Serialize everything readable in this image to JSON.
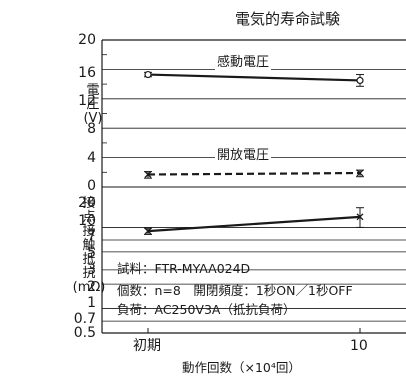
{
  "chart_data": {
    "type": "line",
    "title": "電気的寿命試験",
    "xlabel": "動作回数（×10⁴回）",
    "x_tick_labels": [
      "初期",
      "10"
    ],
    "panels": [
      {
        "ylabel_lines": [
          "電",
          "圧",
          "(V)"
        ],
        "y_tick_labels": [
          "20",
          "16",
          "12",
          "8",
          "4",
          "0"
        ],
        "ylim": [
          0,
          20
        ],
        "series": [
          {
            "name": "感動電圧",
            "line_style": "solid",
            "marker": "circle",
            "values": [
              15.3,
              14.5
            ],
            "error_low": [
              15.0,
              13.7
            ],
            "error_high": [
              15.6,
              15.3
            ]
          },
          {
            "name": "開放電圧",
            "line_style": "dashed",
            "marker": "x",
            "values": [
              1.7,
              1.9
            ],
            "error_low": [
              1.2,
              1.4
            ],
            "error_high": [
              2.1,
              2.3
            ]
          }
        ]
      },
      {
        "ylabel_lines": [
          "接",
          "点",
          "接",
          "触",
          "抵",
          "抗",
          "(mΩ)"
        ],
        "y_tick_labels": [
          "20",
          "10",
          "7",
          "5",
          "3",
          "2",
          "1",
          "0.7",
          "0.5"
        ],
        "y_ticks": [
          20,
          10,
          7,
          5,
          3,
          2,
          1,
          0.7,
          0.5
        ],
        "y_scale": "log",
        "ylim": [
          0.5,
          20
        ],
        "series": [
          {
            "name": "",
            "line_style": "solid",
            "marker": "x",
            "values": [
              9.0,
              13.5
            ],
            "error_low": [
              8.2,
              10.0
            ],
            "error_high": [
              9.8,
              17.5
            ]
          }
        ]
      }
    ],
    "annotations": [
      "試料：FTR-MYAA024D",
      "個数：n=8　開閉頻度：1秒ON／1秒OFF",
      "負荷：AC250V3A（抵抗負荷）"
    ]
  },
  "colors": {
    "line": "#1a1a1a",
    "background": "#ffffff"
  }
}
